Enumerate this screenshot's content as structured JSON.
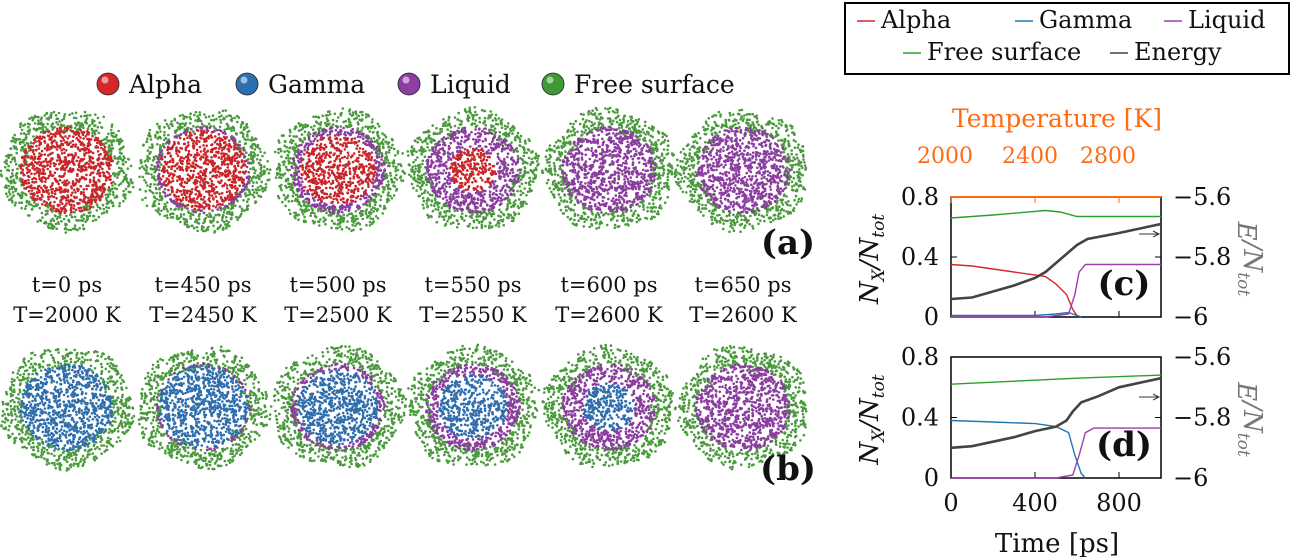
{
  "colors": {
    "alpha": "#d62728",
    "gamma": "#1f77b4",
    "liquid": "#9b3fb0",
    "free_surface": "#2ca02c",
    "energy": "#444444",
    "temperature": "#ff6a13"
  },
  "snapshot_legend": [
    {
      "key": "alpha",
      "label": "Alpha",
      "color": "#d62728"
    },
    {
      "key": "gamma",
      "label": "Gamma",
      "color": "#2d6fb0"
    },
    {
      "key": "liquid",
      "label": "Liquid",
      "color": "#8e3ea3"
    },
    {
      "key": "free_surface",
      "label": "Free surface",
      "color": "#3d9a35"
    }
  ],
  "snapshot_times": [
    {
      "t": "t=0 ps",
      "T": "T=2000 K"
    },
    {
      "t": "t=450 ps",
      "T": "T=2450 K"
    },
    {
      "t": "t=500 ps",
      "T": "T=2500 K"
    },
    {
      "t": "t=550 ps",
      "T": "T=2550 K"
    },
    {
      "t": "t=600 ps",
      "T": "T=2600 K"
    },
    {
      "t": "t=650 ps",
      "T": "T=2600 K"
    }
  ],
  "snapshot_rows": [
    {
      "label": "(a)",
      "solid_phase": "alpha",
      "liquid_fraction": [
        0.0,
        0.15,
        0.35,
        0.75,
        1.0,
        1.0
      ]
    },
    {
      "label": "(b)",
      "solid_phase": "gamma",
      "liquid_fraction": [
        0.0,
        0.08,
        0.25,
        0.45,
        0.7,
        1.0
      ]
    }
  ],
  "plot_legend": [
    {
      "label": "Alpha",
      "color": "#d62728"
    },
    {
      "label": "Gamma",
      "color": "#1f77b4"
    },
    {
      "label": "Liquid",
      "color": "#9b3fb0"
    },
    {
      "label": "Free surface",
      "color": "#2ca02c"
    },
    {
      "label": "Energy",
      "color": "#444444"
    }
  ],
  "chart_data": [
    {
      "type": "line",
      "panel_label": "(c)",
      "xlim": [
        0,
        1000
      ],
      "ylim": [
        0,
        0.8
      ],
      "yticks": [
        "0",
        "0.4",
        "0.8"
      ],
      "ylabel": "N_X/N_tot",
      "y2lim": [
        -6,
        -5.6
      ],
      "y2ticks": [
        "−5.6",
        "−5.8",
        "−6"
      ],
      "y2label": "E/N_tot",
      "top_axis": {
        "label": "Temperature [K]",
        "ticks": [
          "2000",
          "2400",
          "2800"
        ],
        "tick_positions_time_ps": [
          0,
          400,
          800
        ]
      },
      "series": [
        {
          "name": "Free surface",
          "color": "#2ca02c",
          "axis": "left",
          "x": [
            0,
            200,
            450,
            520,
            600,
            1000
          ],
          "y": [
            0.66,
            0.68,
            0.71,
            0.7,
            0.67,
            0.67
          ]
        },
        {
          "name": "Alpha",
          "color": "#d62728",
          "axis": "left",
          "x": [
            0,
            100,
            300,
            450,
            500,
            550,
            580,
            600,
            620
          ],
          "y": [
            0.35,
            0.34,
            0.3,
            0.27,
            0.22,
            0.15,
            0.05,
            0.01,
            0.0
          ]
        },
        {
          "name": "Gamma",
          "color": "#1f77b4",
          "axis": "left",
          "x": [
            0,
            400,
            500,
            560,
            600,
            620
          ],
          "y": [
            0.01,
            0.01,
            0.02,
            0.03,
            0.01,
            0.0
          ]
        },
        {
          "name": "Liquid",
          "color": "#9b3fb0",
          "axis": "left",
          "x": [
            0,
            450,
            560,
            590,
            610,
            640,
            1000
          ],
          "y": [
            0.0,
            0.0,
            0.02,
            0.15,
            0.3,
            0.35,
            0.35
          ]
        },
        {
          "name": "Energy",
          "color": "#444444",
          "axis": "right",
          "x": [
            0,
            100,
            200,
            300,
            400,
            450,
            500,
            550,
            600,
            650,
            800,
            900,
            1000
          ],
          "y": [
            -5.94,
            -5.935,
            -5.915,
            -5.895,
            -5.87,
            -5.85,
            -5.82,
            -5.79,
            -5.76,
            -5.74,
            -5.72,
            -5.705,
            -5.69
          ]
        }
      ]
    },
    {
      "type": "line",
      "panel_label": "(d)",
      "xlim": [
        0,
        1000
      ],
      "xticks": [
        "0",
        "400",
        "800"
      ],
      "xlabel": "Time [ps]",
      "ylim": [
        0,
        0.8
      ],
      "yticks": [
        "0",
        "0.4",
        "0.8"
      ],
      "ylabel": "N_X/N_tot",
      "y2lim": [
        -6,
        -5.6
      ],
      "y2ticks": [
        "−5.6",
        "−5.8",
        "−6"
      ],
      "y2label": "E/N_tot",
      "series": [
        {
          "name": "Free surface",
          "color": "#2ca02c",
          "axis": "left",
          "x": [
            0,
            300,
            600,
            1000
          ],
          "y": [
            0.62,
            0.64,
            0.66,
            0.68
          ]
        },
        {
          "name": "Gamma",
          "color": "#1f77b4",
          "axis": "left",
          "x": [
            0,
            200,
            400,
            500,
            560,
            590,
            620,
            640
          ],
          "y": [
            0.38,
            0.37,
            0.36,
            0.34,
            0.3,
            0.15,
            0.03,
            0.0
          ]
        },
        {
          "name": "Liquid",
          "color": "#9b3fb0",
          "axis": "left",
          "x": [
            0,
            500,
            580,
            610,
            640,
            680,
            1000
          ],
          "y": [
            0.0,
            0.0,
            0.02,
            0.15,
            0.3,
            0.33,
            0.33
          ]
        },
        {
          "name": "Energy",
          "color": "#444444",
          "axis": "right",
          "x": [
            0,
            100,
            200,
            300,
            400,
            500,
            550,
            580,
            620,
            700,
            800,
            900,
            1000
          ],
          "y": [
            -5.9,
            -5.895,
            -5.88,
            -5.865,
            -5.845,
            -5.83,
            -5.81,
            -5.78,
            -5.75,
            -5.73,
            -5.7,
            -5.685,
            -5.67
          ]
        }
      ]
    }
  ]
}
